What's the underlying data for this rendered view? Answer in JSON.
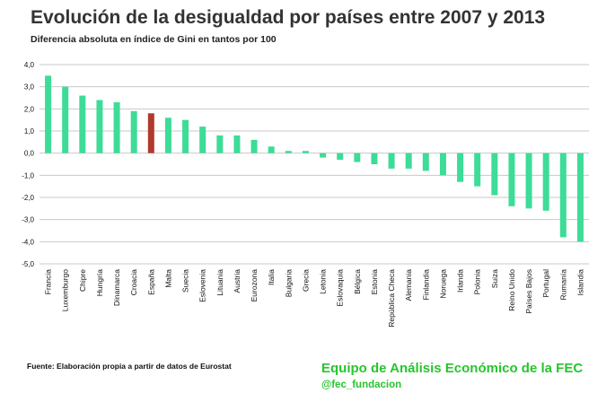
{
  "header": {
    "title": "Evolución de la desigualdad por países entre 2007 y 2013",
    "subtitle": "Diferencia absoluta en índice de Gini en tantos por 100"
  },
  "footer": {
    "source": "Fuente: Elaboración propia a partir de datos de Eurostat",
    "brand": "Equipo de Análisis Económico de la FEC",
    "handle": "@fec_fundacion"
  },
  "colors": {
    "bar": "#3ddc97",
    "highlight": "#b03a2e",
    "brand": "#27c52e",
    "grid": "#c8c8c8"
  },
  "chart_data": {
    "type": "bar",
    "categories": [
      "Francia",
      "Luxemburgo",
      "Chipre",
      "Hungría",
      "Dinamarca",
      "Croacia",
      "España",
      "Malta",
      "Suecia",
      "Eslovenia",
      "Lituania",
      "Austria",
      "Eurozona",
      "Italia",
      "Bulgaria",
      "Grecia",
      "Letonia",
      "Eslovaquia",
      "Bélgica",
      "Estonia",
      "República Checa",
      "Alemania",
      "Finlandia",
      "Noruega",
      "Irlanda",
      "Polonia",
      "Suiza",
      "Reino Unido",
      "Países Bajos",
      "Portugal",
      "Rumanía",
      "Islandia"
    ],
    "values": [
      3.5,
      3.0,
      2.6,
      2.4,
      2.3,
      1.9,
      1.8,
      1.6,
      1.5,
      1.2,
      0.8,
      0.8,
      0.6,
      0.3,
      0.1,
      0.1,
      -0.2,
      -0.3,
      -0.4,
      -0.5,
      -0.7,
      -0.7,
      -0.8,
      -1.0,
      -1.3,
      -1.5,
      -1.9,
      -2.4,
      -2.5,
      -2.6,
      -3.8,
      -4.0
    ],
    "highlight": "España",
    "ylim": [
      -5,
      4
    ],
    "yticks": [
      "-5,0",
      "-4,0",
      "-3,0",
      "-2,0",
      "-1,0",
      "0,0",
      "1,0",
      "2,0",
      "3,0",
      "4,0"
    ],
    "grid": true
  }
}
